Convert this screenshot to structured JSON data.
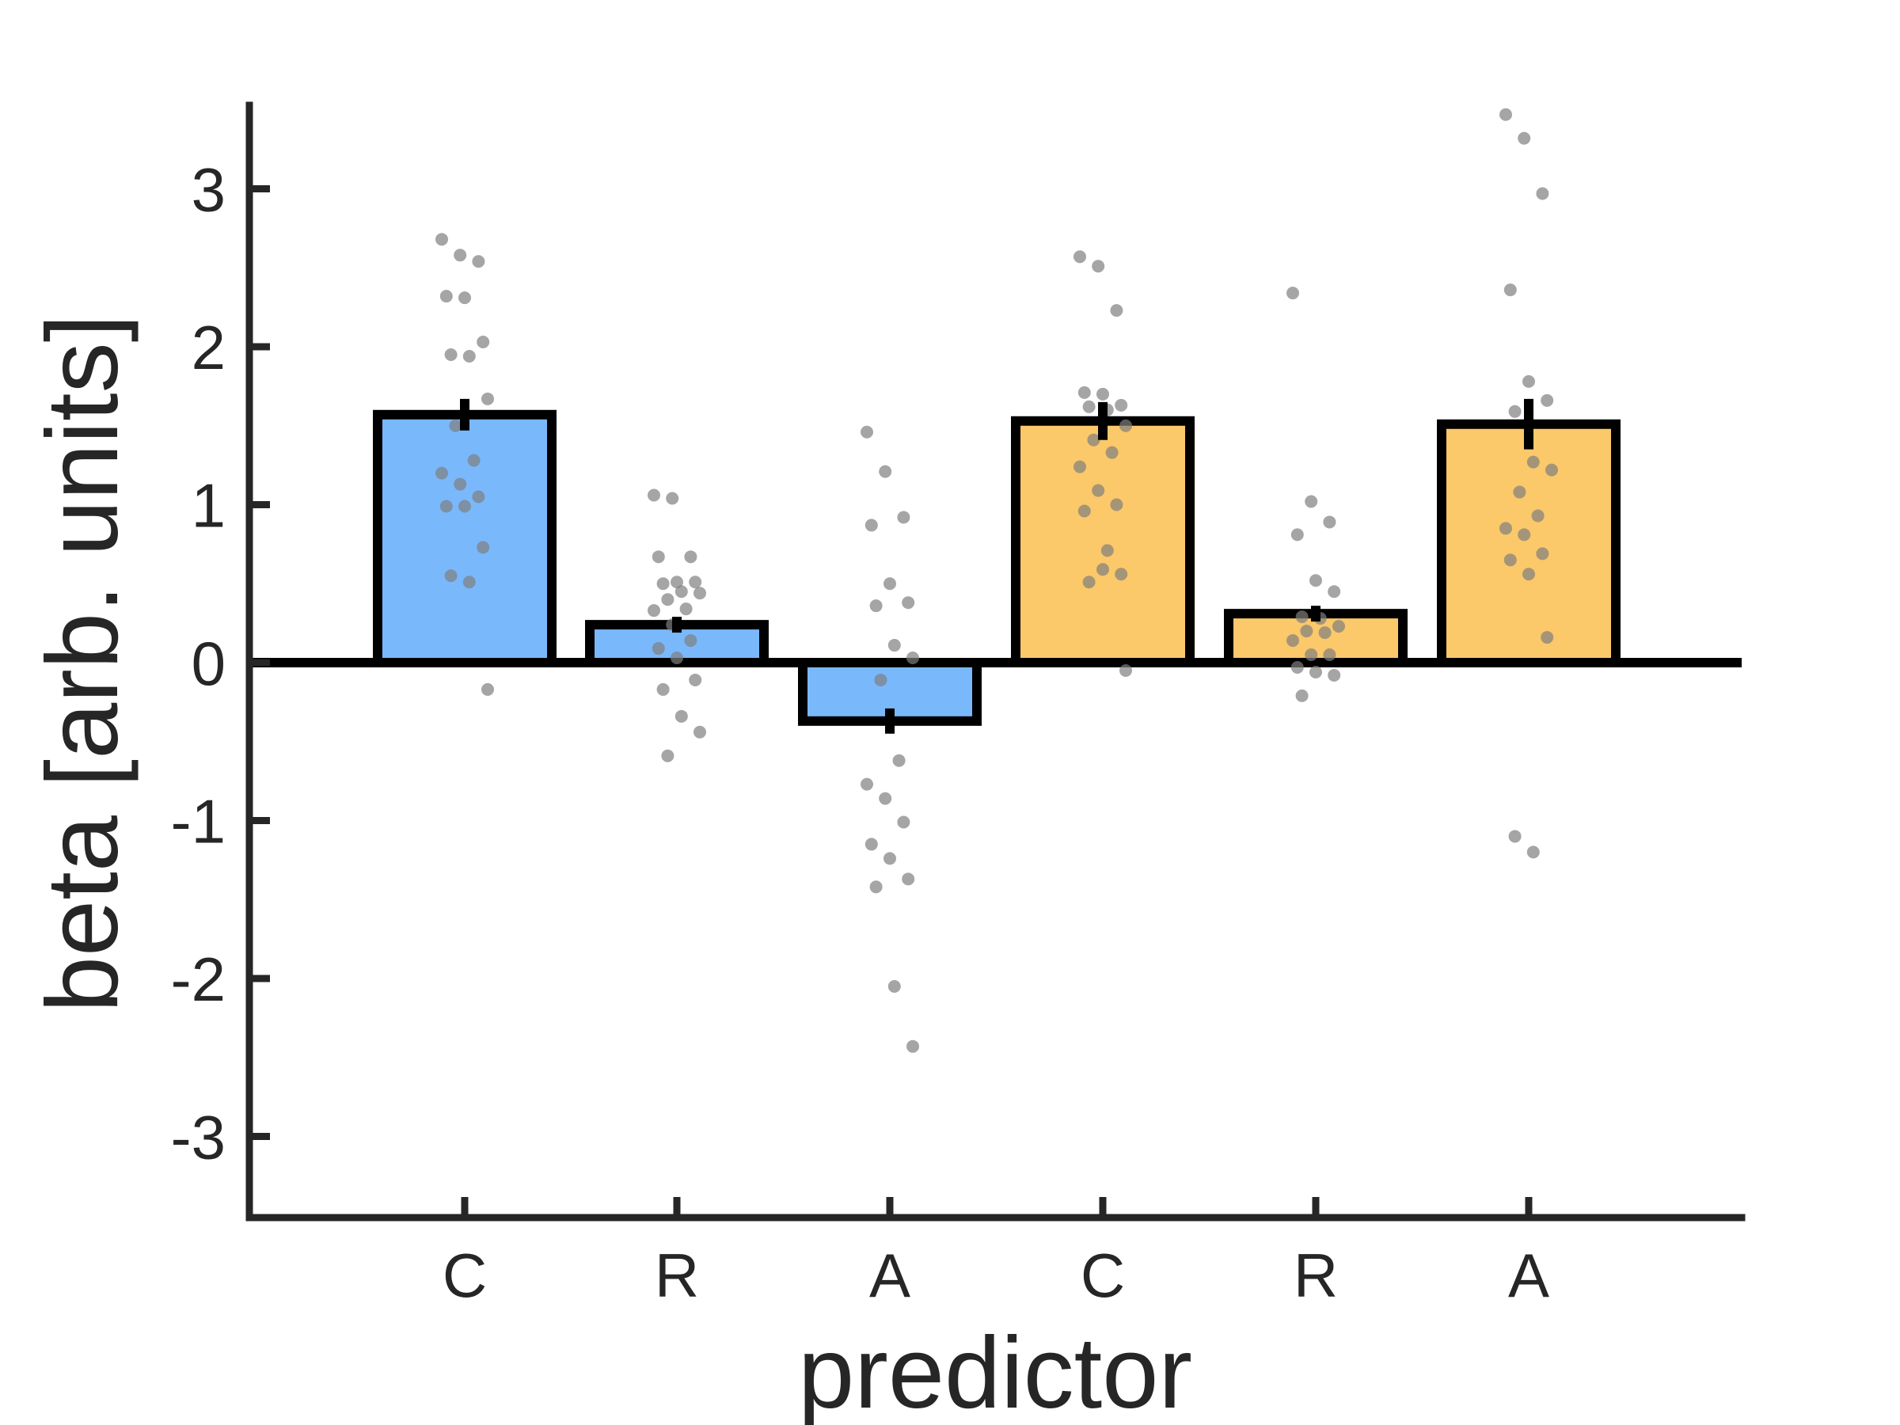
{
  "chart_data": {
    "type": "bar",
    "title": "",
    "xlabel": "predictor",
    "ylabel": "beta [arb. units]",
    "ylim": [
      -3.5,
      3.5
    ],
    "yticks": [
      -3,
      -2,
      -1,
      0,
      1,
      2,
      3
    ],
    "ytick_labels": [
      "-3",
      "-2",
      "-1",
      "0",
      "1",
      "2",
      "3"
    ],
    "categories": [
      "C",
      "R",
      "A",
      "C",
      "R",
      "A"
    ],
    "bar_colors": [
      "#7ab8fc",
      "#7ab8fc",
      "#7ab8fc",
      "#fbc86a",
      "#fbc86a",
      "#fbc86a"
    ],
    "values": [
      1.57,
      0.24,
      -0.37,
      1.53,
      0.31,
      1.51
    ],
    "errors": [
      0.1,
      0.05,
      0.08,
      0.12,
      0.05,
      0.16
    ],
    "grid": false,
    "points": [
      [
        2.68,
        2.58,
        2.54,
        2.32,
        2.31,
        2.03,
        1.95,
        1.94,
        1.67,
        1.5,
        1.28,
        1.2,
        1.13,
        1.05,
        0.99,
        0.99,
        0.73,
        0.55,
        0.51,
        -0.17
      ],
      [
        1.06,
        1.04,
        0.67,
        0.67,
        0.51,
        0.51,
        0.5,
        0.45,
        0.44,
        0.4,
        0.34,
        0.33,
        0.24,
        0.14,
        0.09,
        0.03,
        -0.11,
        -0.17,
        -0.34,
        -0.44,
        -0.59
      ],
      [
        1.46,
        1.21,
        0.92,
        0.87,
        0.5,
        0.38,
        0.36,
        0.11,
        0.03,
        -0.11,
        -0.62,
        -0.77,
        -0.86,
        -1.01,
        -1.15,
        -1.24,
        -1.37,
        -1.42,
        -2.05,
        -2.43
      ],
      [
        2.57,
        2.51,
        2.23,
        1.71,
        1.7,
        1.63,
        1.62,
        1.6,
        1.5,
        1.41,
        1.33,
        1.24,
        1.09,
        1.0,
        0.96,
        0.59,
        0.56,
        0.51,
        0.71,
        -0.05
      ],
      [
        2.34,
        1.02,
        0.89,
        0.81,
        0.52,
        0.45,
        0.29,
        0.28,
        0.23,
        0.2,
        0.19,
        0.14,
        0.05,
        0.05,
        -0.03,
        -0.06,
        -0.08,
        -0.21
      ],
      [
        3.47,
        3.32,
        2.97,
        2.36,
        1.78,
        1.66,
        1.59,
        1.27,
        1.22,
        1.08,
        0.93,
        0.85,
        0.81,
        0.69,
        0.65,
        0.56,
        0.16,
        -1.1,
        -1.2
      ]
    ]
  }
}
